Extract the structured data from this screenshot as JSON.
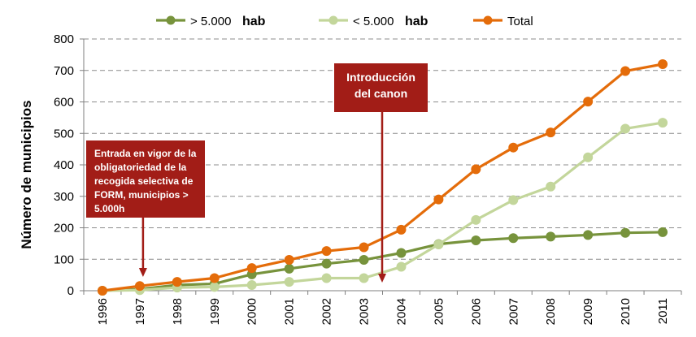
{
  "chart_data": {
    "type": "line",
    "x": [
      "1996",
      "1997",
      "1998",
      "1999",
      "2000",
      "2001",
      "2002",
      "2003",
      "2004",
      "2005",
      "2006",
      "2007",
      "2008",
      "2009",
      "2010",
      "2011"
    ],
    "ylabel": "Número de municipios",
    "ylim": [
      0,
      800
    ],
    "yticks": [
      "0",
      "100",
      "200",
      "300",
      "400",
      "500",
      "600",
      "700",
      "800"
    ],
    "grid": true,
    "legend_position": "top",
    "series": [
      {
        "name": "> 5.000",
        "name_suffix": "hab",
        "color": "#77933c",
        "values": [
          0,
          5,
          18,
          22,
          52,
          70,
          86,
          98,
          120,
          148,
          160,
          167,
          172,
          177,
          184,
          186
        ]
      },
      {
        "name": "< 5.000",
        "name_suffix": "hab",
        "color": "#c3d69b",
        "values": [
          0,
          2,
          10,
          12,
          18,
          28,
          40,
          40,
          76,
          147,
          225,
          288,
          331,
          424,
          515,
          534
        ]
      },
      {
        "name": "Total",
        "name_suffix": "",
        "color": "#e46c0a",
        "values": [
          0,
          15,
          28,
          40,
          72,
          98,
          126,
          138,
          194,
          290,
          386,
          455,
          503,
          601,
          698,
          720
        ]
      }
    ],
    "annotations": [
      {
        "text_lines": [
          "Entrada en vigor de la",
          "obligatoriedad de la",
          "recogida selectiva de",
          "FORM, municipios >",
          "5.000h"
        ],
        "x": "1997",
        "color": "#a21d17"
      },
      {
        "text_lines": [
          "Introducción",
          "del canon"
        ],
        "x": "2003-2004",
        "color": "#a21d17"
      }
    ]
  }
}
